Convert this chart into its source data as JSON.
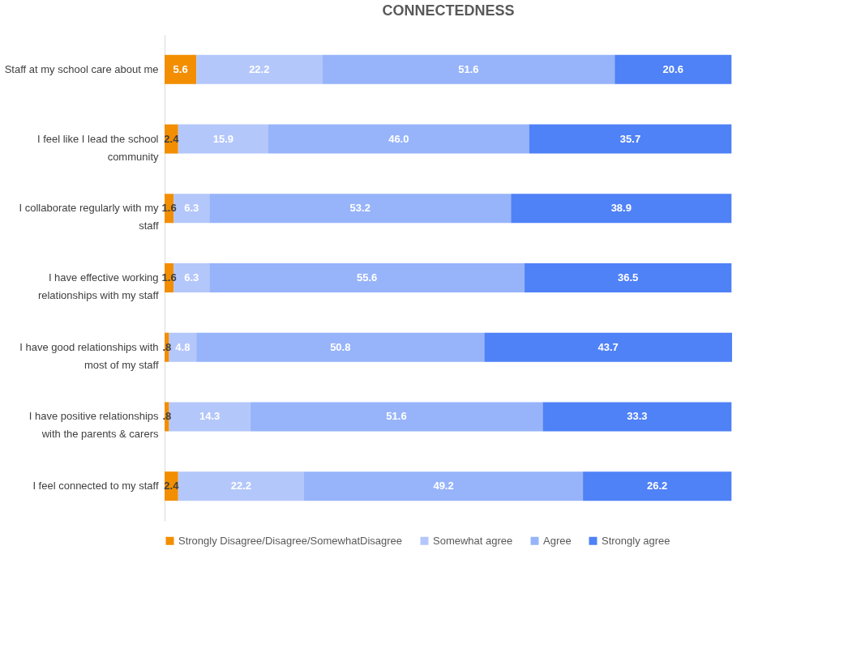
{
  "chart_data": {
    "type": "bar",
    "title": "CONNECTEDNESS",
    "orientation": "horizontal",
    "stacked": true,
    "data_labels": true,
    "legend": "bottom",
    "grid": false,
    "categories": [
      "Staff at my school care about me",
      "I feel like I lead the school community",
      "I collaborate regularly with my staff",
      "I have effective working relationships with my staff",
      "I have good relationships with most of my staff",
      "I have positive relationships with the parents & carers",
      "I feel connected to my staff"
    ],
    "series": [
      {
        "name": "Strongly Disagree/Disagree/SomewhatDisagree",
        "color": "#f28e00",
        "values": [
          5.6,
          2.4,
          1.6,
          1.6,
          0.8,
          0.8,
          2.4
        ],
        "value_labels": [
          "5.6",
          "2.4",
          "1.6",
          "1.6",
          ".8",
          ".8",
          "2.4"
        ]
      },
      {
        "name": "Somewhat agree",
        "color": "#b4c7fb",
        "values": [
          22.2,
          15.9,
          6.3,
          6.3,
          4.8,
          14.3,
          22.2
        ],
        "value_labels": [
          "22.2",
          "15.9",
          "6.3",
          "6.3",
          "4.8",
          "14.3",
          "22.2"
        ]
      },
      {
        "name": "Agree",
        "color": "#97b4fa",
        "values": [
          51.6,
          46.0,
          53.2,
          55.6,
          50.8,
          51.6,
          49.2
        ],
        "value_labels": [
          "51.6",
          "46.0",
          "53.2",
          "55.6",
          "50.8",
          "51.6",
          "49.2"
        ]
      },
      {
        "name": "Strongly agree",
        "color": "#4f81f7",
        "values": [
          20.6,
          35.7,
          38.9,
          36.5,
          43.7,
          33.3,
          26.2
        ],
        "value_labels": [
          "20.6",
          "35.7",
          "38.9",
          "36.5",
          "43.7",
          "33.3",
          "26.2"
        ]
      }
    ]
  }
}
